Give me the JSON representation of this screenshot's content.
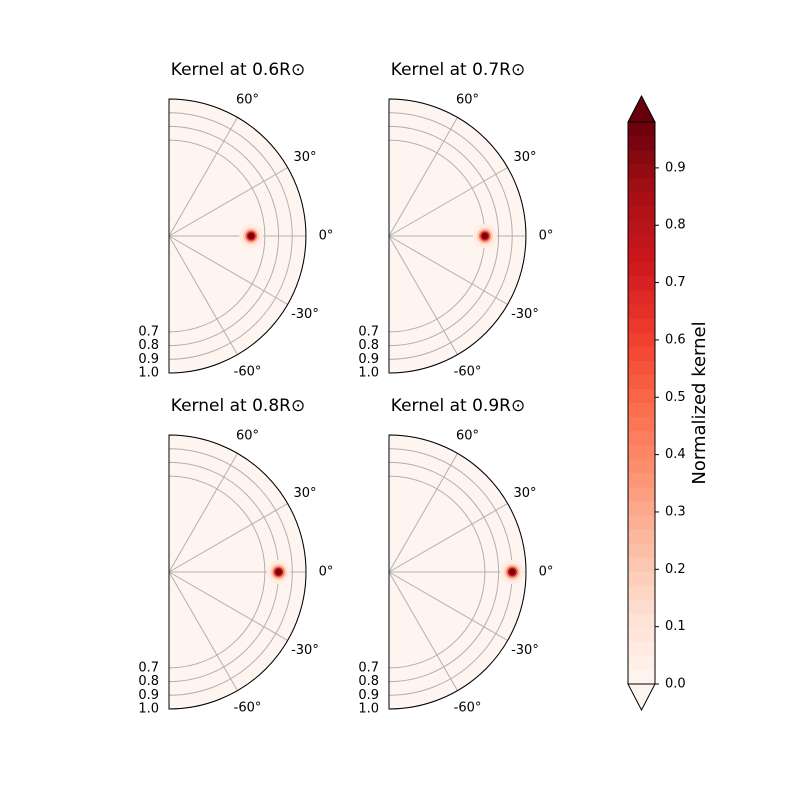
{
  "chart_data": [
    {
      "type": "polar",
      "title": "Kernel at 0.6R⊙",
      "kernel_center": {
        "r": 0.6,
        "theta": 0
      },
      "rlim": [
        0,
        1
      ],
      "rticks": [
        0.7,
        0.8,
        0.9,
        1.0
      ],
      "thetalim": [
        -90,
        90
      ],
      "thetaticks": [
        {
          "value": -60,
          "label": "-60°"
        },
        {
          "value": -30,
          "label": "-30°"
        },
        {
          "value": 0,
          "label": "0°"
        },
        {
          "value": 30,
          "label": "30°"
        },
        {
          "value": 60,
          "label": "60°"
        }
      ],
      "grid": true
    },
    {
      "type": "polar",
      "title": "Kernel at 0.7R⊙",
      "kernel_center": {
        "r": 0.7,
        "theta": 0
      },
      "rlim": [
        0,
        1
      ],
      "rticks": [
        0.7,
        0.8,
        0.9,
        1.0
      ],
      "thetalim": [
        -90,
        90
      ],
      "thetaticks": [
        {
          "value": -60,
          "label": "-60°"
        },
        {
          "value": -30,
          "label": "-30°"
        },
        {
          "value": 0,
          "label": "0°"
        },
        {
          "value": 30,
          "label": "30°"
        },
        {
          "value": 60,
          "label": "60°"
        }
      ],
      "grid": true
    },
    {
      "type": "polar",
      "title": "Kernel at 0.8R⊙",
      "kernel_center": {
        "r": 0.8,
        "theta": 0
      },
      "rlim": [
        0,
        1
      ],
      "rticks": [
        0.7,
        0.8,
        0.9,
        1.0
      ],
      "thetalim": [
        -90,
        90
      ],
      "thetaticks": [
        {
          "value": -60,
          "label": "-60°"
        },
        {
          "value": -30,
          "label": "-30°"
        },
        {
          "value": 0,
          "label": "0°"
        },
        {
          "value": 30,
          "label": "30°"
        },
        {
          "value": 60,
          "label": "60°"
        }
      ],
      "grid": true
    },
    {
      "type": "polar",
      "title": "Kernel at 0.9R⊙",
      "kernel_center": {
        "r": 0.9,
        "theta": 0
      },
      "rlim": [
        0,
        1
      ],
      "rticks": [
        0.7,
        0.8,
        0.9,
        1.0
      ],
      "thetalim": [
        -90,
        90
      ],
      "thetaticks": [
        {
          "value": -60,
          "label": "-60°"
        },
        {
          "value": -30,
          "label": "-30°"
        },
        {
          "value": 0,
          "label": "0°"
        },
        {
          "value": 30,
          "label": "30°"
        },
        {
          "value": 60,
          "label": "60°"
        }
      ],
      "grid": true
    },
    {
      "type": "colorbar",
      "label": "Normalized kernel",
      "ylim": [
        0,
        0.98
      ],
      "yticks": [
        0.0,
        0.1,
        0.2,
        0.3,
        0.4,
        0.5,
        0.6,
        0.7,
        0.8,
        0.9
      ],
      "colormap": [
        "#fff5f0",
        "#fee0d2",
        "#fcbba1",
        "#fc9272",
        "#fb6a4a",
        "#ef3b2c",
        "#cb181d",
        "#a50f15",
        "#67000d"
      ],
      "levels": 40
    }
  ]
}
